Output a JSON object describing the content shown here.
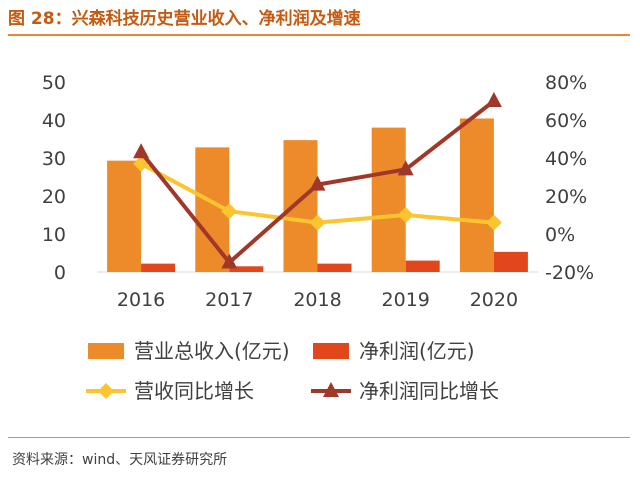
{
  "header": {
    "title": "图 28：兴森科技历史营业收入、净利润及增速"
  },
  "footer": {
    "source": "资料来源：wind、天风证券研究所"
  },
  "colors": {
    "revenue": "#ed8a2a",
    "net_profit": "#e2461d",
    "revenue_growth": "#fcc52f",
    "profit_growth": "#a0382a",
    "accent": "#e8883a"
  },
  "chart_data": {
    "type": "bar",
    "categories": [
      "2016",
      "2017",
      "2018",
      "2019",
      "2020"
    ],
    "series": [
      {
        "name": "营业总收入(亿元)",
        "type": "bar",
        "axis": "left",
        "values": [
          29.3,
          32.8,
          34.7,
          38.0,
          40.4
        ]
      },
      {
        "name": "净利润(亿元)",
        "type": "bar",
        "axis": "left",
        "values": [
          2.2,
          1.5,
          2.2,
          3.0,
          5.3
        ]
      },
      {
        "name": "营收同比增长",
        "type": "line",
        "axis": "right",
        "marker": "diamond",
        "values": [
          37,
          12,
          6,
          10,
          6
        ]
      },
      {
        "name": "净利润同比增长",
        "type": "line",
        "axis": "right",
        "marker": "triangle",
        "values": [
          43,
          -15,
          26,
          34,
          70
        ]
      }
    ],
    "y_left": {
      "ylim": [
        0,
        50
      ],
      "ticks": [
        "0",
        "10",
        "20",
        "30",
        "40",
        "50"
      ]
    },
    "y_right": {
      "ylim": [
        -20,
        80
      ],
      "ticks": [
        "-20%",
        "0%",
        "20%",
        "40%",
        "60%",
        "80%"
      ]
    },
    "grid": false,
    "legend": "bottom"
  }
}
